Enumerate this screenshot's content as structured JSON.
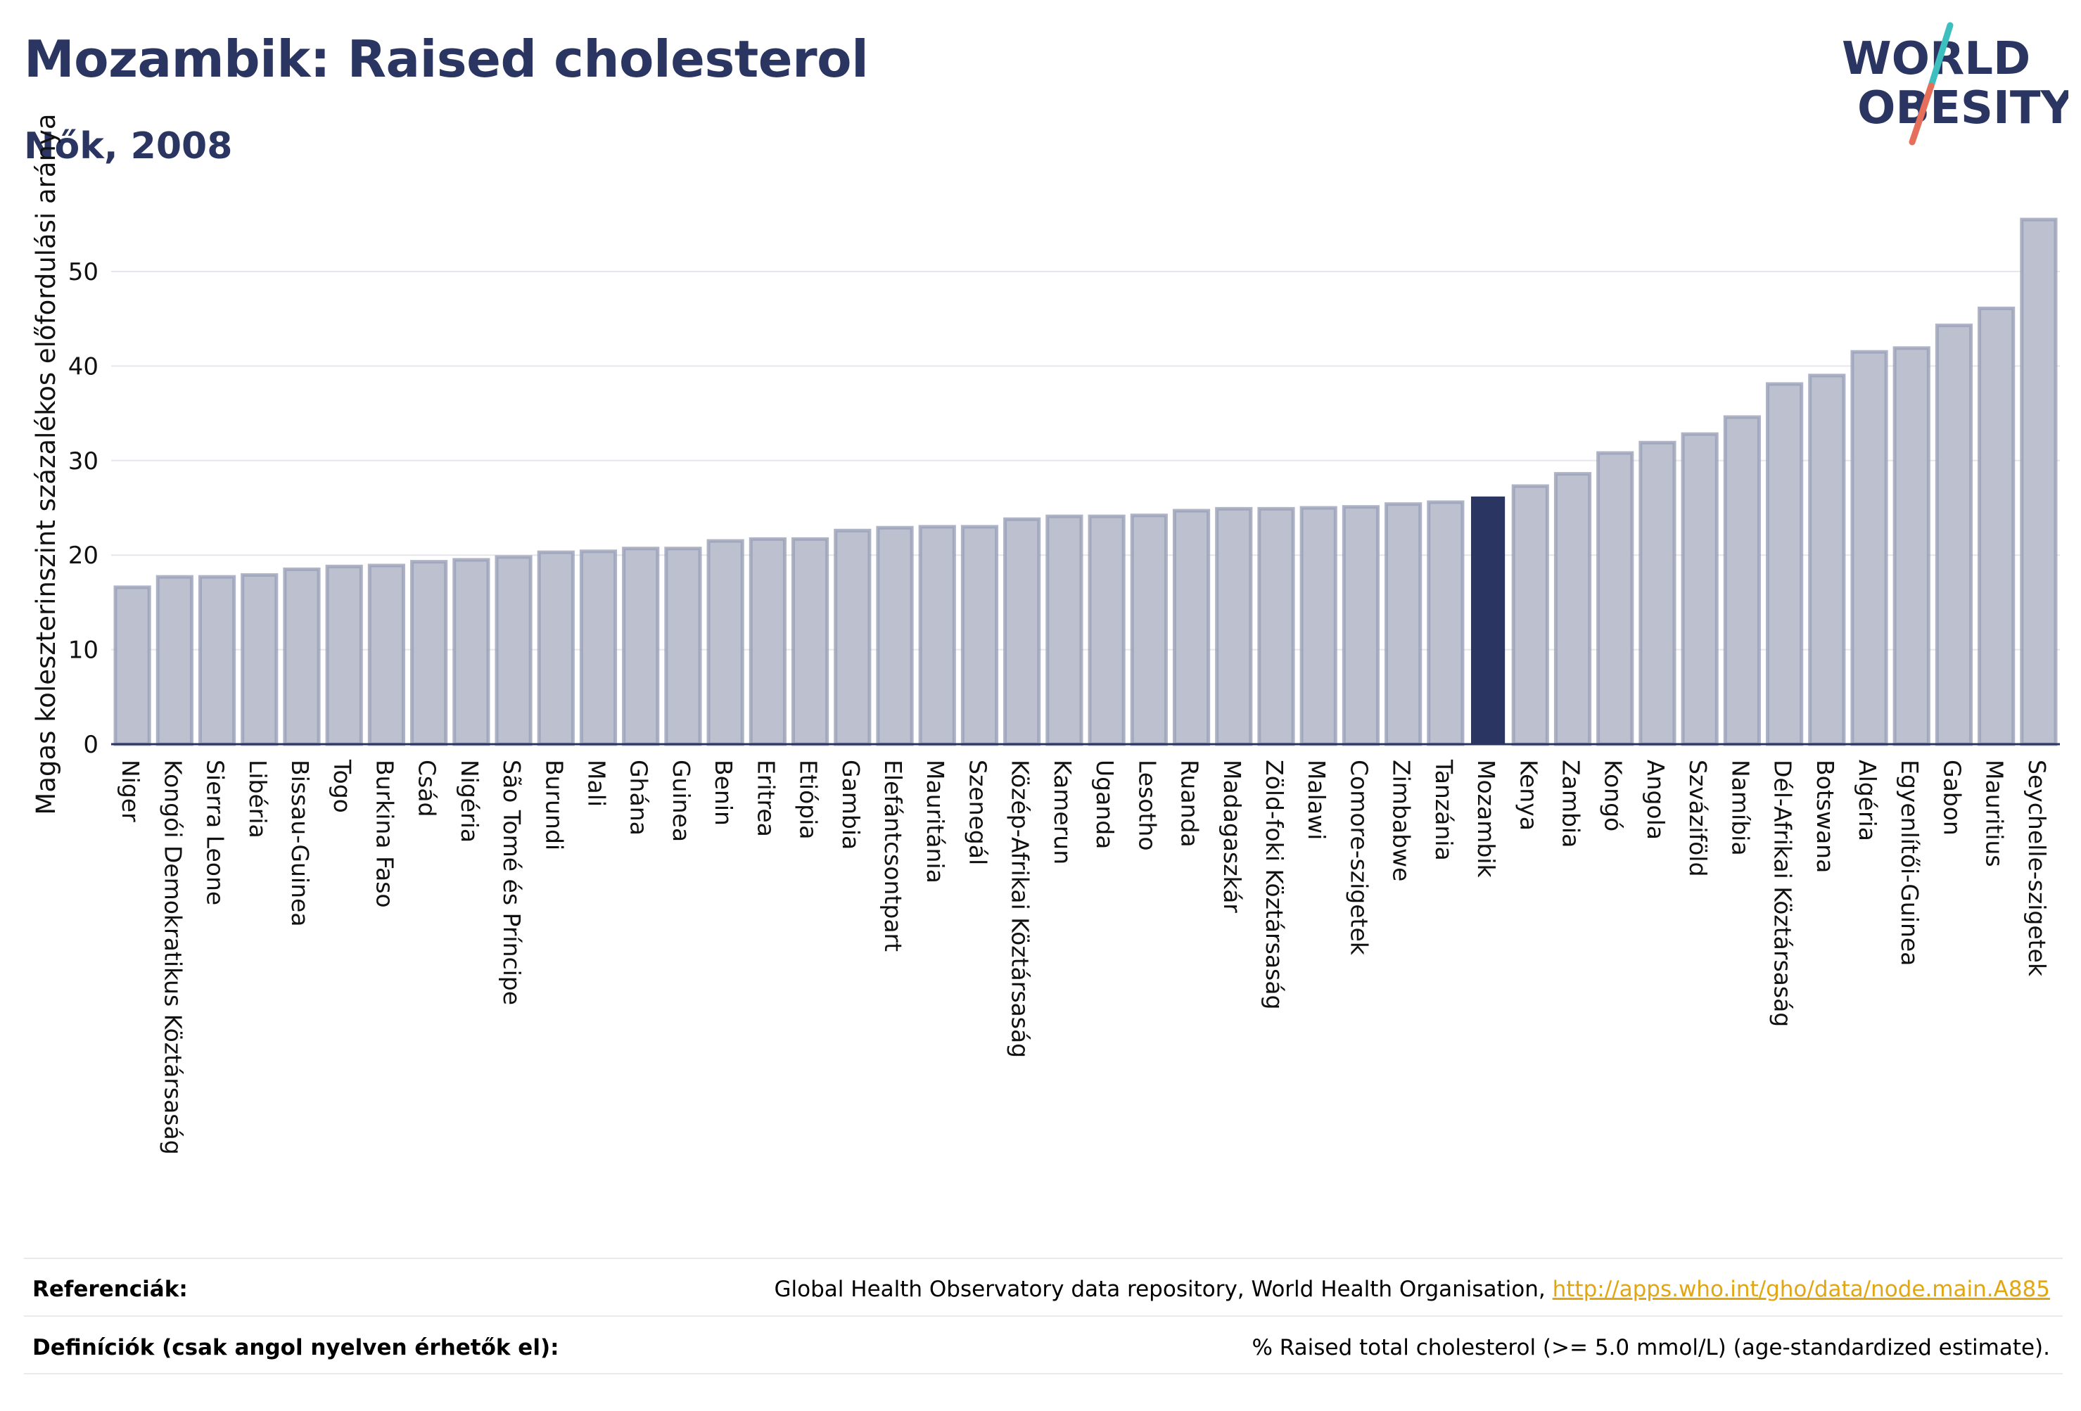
{
  "header": {
    "title": "Mozambik: Raised cholesterol",
    "subtitle": "Nők, 2008"
  },
  "logo": {
    "line1": "WORLD",
    "line2": "OBESITY",
    "colors": {
      "text": "#2a3561",
      "slash_top": "#3dbfbf",
      "slash_bottom": "#e56f5a"
    }
  },
  "chart_data": {
    "type": "bar",
    "title": "Mozambik: Raised cholesterol",
    "subtitle": "Nők, 2008",
    "ylabel": "Magas koleszterinszint százalékos előfordulási aránya",
    "xlabel": "",
    "ylim": [
      0,
      57
    ],
    "yticks": [
      0,
      10,
      20,
      30,
      40,
      50
    ],
    "grid": true,
    "highlight": "Mozambik",
    "colors": {
      "bar": "#bcc0cf",
      "bar_edge": "#9aa0b8",
      "highlight": "#2a3561",
      "grid": "#e6e6ec",
      "axis": "#2a3561"
    },
    "categories": [
      "Niger",
      "Kongói Demokratikus Köztársaság",
      "Sierra Leone",
      "Libéria",
      "Bissau-Guinea",
      "Togo",
      "Burkina Faso",
      "Csád",
      "Nigéria",
      "São Tomé és Príncipe",
      "Burundi",
      "Mali",
      "Ghána",
      "Guinea",
      "Benin",
      "Eritrea",
      "Etiópia",
      "Gambia",
      "Elefántcsontpart",
      "Mauritánia",
      "Szenegál",
      "Közép-Afrikai Köztársaság",
      "Kamerun",
      "Uganda",
      "Lesotho",
      "Ruanda",
      "Madagaszkár",
      "Zöld-foki Köztársaság",
      "Malawi",
      "Comore-szigetek",
      "Zimbabwe",
      "Tanzánia",
      "Mozambik",
      "Kenya",
      "Zambia",
      "Kongó",
      "Angola",
      "Szváziföld",
      "Namíbia",
      "Dél-Afrikai Köztársaság",
      "Botswana",
      "Algéria",
      "Egyenlítői-Guinea",
      "Gabon",
      "Mauritius",
      "Seychelle-szigetek"
    ],
    "values": [
      16.6,
      17.7,
      17.7,
      17.9,
      18.5,
      18.8,
      18.9,
      19.3,
      19.5,
      19.8,
      20.3,
      20.4,
      20.7,
      20.7,
      21.5,
      21.7,
      21.7,
      22.6,
      22.9,
      23.0,
      23.0,
      23.8,
      24.1,
      24.1,
      24.2,
      24.7,
      24.9,
      24.9,
      25.0,
      25.1,
      25.4,
      25.6,
      26.2,
      27.3,
      28.6,
      30.8,
      31.9,
      32.8,
      34.6,
      38.1,
      39.0,
      41.5,
      41.9,
      44.3,
      46.1,
      55.5
    ]
  },
  "footer": {
    "references_label": "Referenciák:",
    "references_text": "Global Health Observatory data repository, World Health Organisation,",
    "references_link": "http://apps.who.int/gho/data/node.main.A885",
    "definitions_label": "Definíciók (csak angol nyelven érhetők el):",
    "definitions_text": "% Raised total cholesterol (>= 5.0 mmol/L) (age-standardized estimate)."
  }
}
